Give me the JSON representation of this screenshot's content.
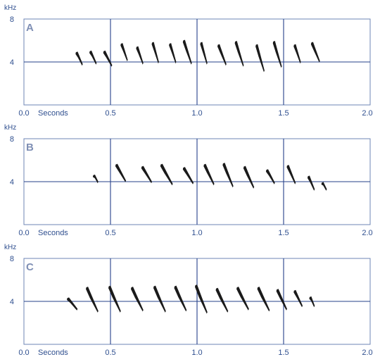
{
  "chart_data": [
    {
      "type": "spectrogram",
      "panel_label": "A",
      "y_unit": "kHz",
      "xlabel": "Seconds",
      "xlim": [
        0,
        2.0
      ],
      "ylim": [
        0,
        8
      ],
      "x_ticks": [
        "0.0",
        "0.5",
        "1.0",
        "1.5",
        "2.0"
      ],
      "y_ticks": [
        "8",
        "4"
      ],
      "gridlines_x": [
        0.5,
        1.0,
        1.5
      ],
      "gridlines_y": [
        4
      ],
      "notes": [
        {
          "t": 0.3,
          "f_high": 4.9,
          "f_low": 3.8,
          "dur": 0.04
        },
        {
          "t": 0.38,
          "f_high": 5.0,
          "f_low": 3.9,
          "dur": 0.04
        },
        {
          "t": 0.46,
          "f_high": 5.0,
          "f_low": 3.7,
          "dur": 0.05
        },
        {
          "t": 0.56,
          "f_high": 5.7,
          "f_low": 4.2,
          "dur": 0.04
        },
        {
          "t": 0.65,
          "f_high": 5.4,
          "f_low": 3.9,
          "dur": 0.04
        },
        {
          "t": 0.74,
          "f_high": 5.8,
          "f_low": 4.0,
          "dur": 0.04
        },
        {
          "t": 0.84,
          "f_high": 5.7,
          "f_low": 4.0,
          "dur": 0.04
        },
        {
          "t": 0.92,
          "f_high": 6.0,
          "f_low": 3.9,
          "dur": 0.05
        },
        {
          "t": 1.02,
          "f_high": 5.8,
          "f_low": 3.9,
          "dur": 0.04
        },
        {
          "t": 1.12,
          "f_high": 5.6,
          "f_low": 3.8,
          "dur": 0.05
        },
        {
          "t": 1.22,
          "f_high": 5.9,
          "f_low": 3.7,
          "dur": 0.05
        },
        {
          "t": 1.34,
          "f_high": 5.6,
          "f_low": 3.2,
          "dur": 0.05
        },
        {
          "t": 1.44,
          "f_high": 5.9,
          "f_low": 3.6,
          "dur": 0.05
        },
        {
          "t": 1.56,
          "f_high": 5.6,
          "f_low": 4.0,
          "dur": 0.04
        },
        {
          "t": 1.66,
          "f_high": 5.8,
          "f_low": 4.1,
          "dur": 0.05
        }
      ]
    },
    {
      "type": "spectrogram",
      "panel_label": "B",
      "y_unit": "kHz",
      "xlabel": "Seconds",
      "xlim": [
        0,
        2.0
      ],
      "ylim": [
        0,
        8
      ],
      "x_ticks": [
        "0.0",
        "0.5",
        "1.0",
        "1.5",
        "2.0"
      ],
      "y_ticks": [
        "8",
        "4"
      ],
      "gridlines_x": [
        0.5,
        1.0,
        1.5
      ],
      "gridlines_y": [
        4
      ],
      "notes": [
        {
          "t": 0.4,
          "f_high": 4.6,
          "f_low": 4.0,
          "dur": 0.03
        },
        {
          "t": 0.53,
          "f_high": 5.6,
          "f_low": 4.1,
          "dur": 0.06
        },
        {
          "t": 0.68,
          "f_high": 5.4,
          "f_low": 4.0,
          "dur": 0.06
        },
        {
          "t": 0.79,
          "f_high": 5.6,
          "f_low": 3.8,
          "dur": 0.07
        },
        {
          "t": 0.92,
          "f_high": 5.3,
          "f_low": 3.9,
          "dur": 0.06
        },
        {
          "t": 1.04,
          "f_high": 5.6,
          "f_low": 3.8,
          "dur": 0.06
        },
        {
          "t": 1.15,
          "f_high": 5.7,
          "f_low": 3.6,
          "dur": 0.06
        },
        {
          "t": 1.27,
          "f_high": 5.4,
          "f_low": 3.5,
          "dur": 0.06
        },
        {
          "t": 1.4,
          "f_high": 5.1,
          "f_low": 3.9,
          "dur": 0.05
        },
        {
          "t": 1.52,
          "f_high": 5.5,
          "f_low": 3.9,
          "dur": 0.05
        },
        {
          "t": 1.64,
          "f_high": 4.5,
          "f_low": 3.3,
          "dur": 0.04
        },
        {
          "t": 1.72,
          "f_high": 3.9,
          "f_low": 3.3,
          "dur": 0.03
        }
      ]
    },
    {
      "type": "spectrogram",
      "panel_label": "C",
      "y_unit": "kHz",
      "xlabel": "Seconds",
      "xlim": [
        0,
        2.0
      ],
      "ylim": [
        0,
        8
      ],
      "x_ticks": [
        "0.0",
        "0.5",
        "1.0",
        "1.5",
        "2.0"
      ],
      "y_ticks": [
        "8",
        "4"
      ],
      "gridlines_x": [
        0.5,
        1.0,
        1.5
      ],
      "gridlines_y": [
        4
      ],
      "notes": [
        {
          "t": 0.25,
          "f_high": 4.3,
          "f_low": 3.3,
          "dur": 0.06
        },
        {
          "t": 0.36,
          "f_high": 5.3,
          "f_low": 3.1,
          "dur": 0.07
        },
        {
          "t": 0.49,
          "f_high": 5.4,
          "f_low": 3.1,
          "dur": 0.07
        },
        {
          "t": 0.62,
          "f_high": 5.3,
          "f_low": 3.2,
          "dur": 0.07
        },
        {
          "t": 0.75,
          "f_high": 5.4,
          "f_low": 3.1,
          "dur": 0.07
        },
        {
          "t": 0.87,
          "f_high": 5.4,
          "f_low": 3.2,
          "dur": 0.07
        },
        {
          "t": 0.99,
          "f_high": 5.5,
          "f_low": 3.0,
          "dur": 0.07
        },
        {
          "t": 1.11,
          "f_high": 5.2,
          "f_low": 3.1,
          "dur": 0.07
        },
        {
          "t": 1.23,
          "f_high": 5.3,
          "f_low": 3.3,
          "dur": 0.07
        },
        {
          "t": 1.35,
          "f_high": 5.3,
          "f_low": 3.2,
          "dur": 0.07
        },
        {
          "t": 1.46,
          "f_high": 5.1,
          "f_low": 3.3,
          "dur": 0.06
        },
        {
          "t": 1.56,
          "f_high": 5.0,
          "f_low": 3.6,
          "dur": 0.05
        },
        {
          "t": 1.65,
          "f_high": 4.4,
          "f_low": 3.6,
          "dur": 0.03
        }
      ]
    }
  ]
}
